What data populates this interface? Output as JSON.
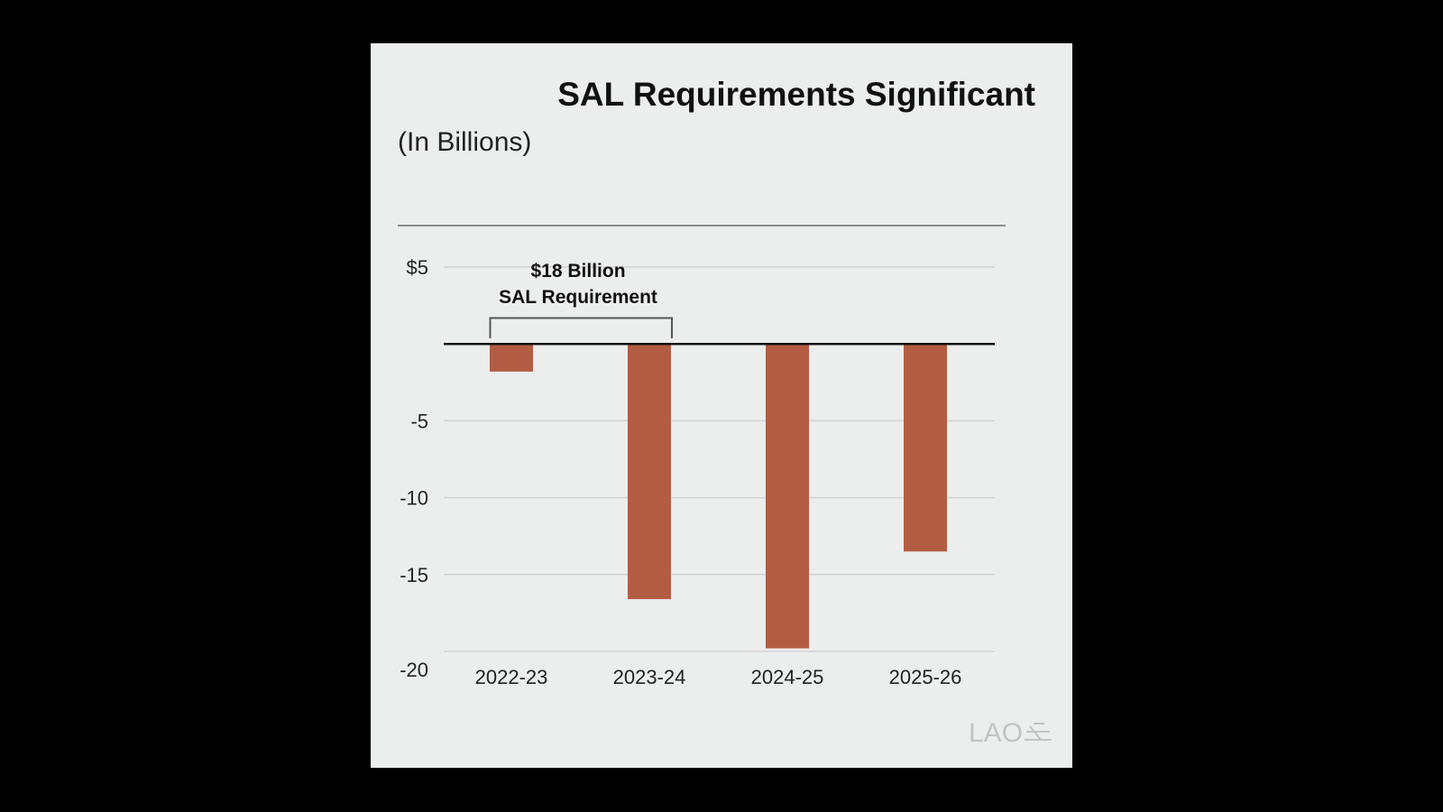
{
  "page": {
    "background": "#000000",
    "panel_background": "#eceded"
  },
  "chart_data": {
    "type": "bar",
    "title": "SAL Requirements Significant",
    "subtitle": "(In Billions)",
    "categories": [
      "2022-23",
      "2023-24",
      "2024-25",
      "2025-26"
    ],
    "values": [
      -1.8,
      -16.6,
      -19.8,
      -13.5
    ],
    "yticks": [
      5,
      -5,
      -10,
      -15,
      -20
    ],
    "ytick_labels": [
      "$5",
      "-5",
      "-10",
      "-15",
      "-20"
    ],
    "ylim": [
      -20,
      5
    ],
    "grid": true,
    "bar_color": "#b35c44",
    "annotation": {
      "lines": [
        "$18 Billion",
        "SAL Requirement"
      ],
      "spans_categories": [
        "2022-23",
        "2023-24"
      ]
    },
    "logo_text": "LAO"
  }
}
